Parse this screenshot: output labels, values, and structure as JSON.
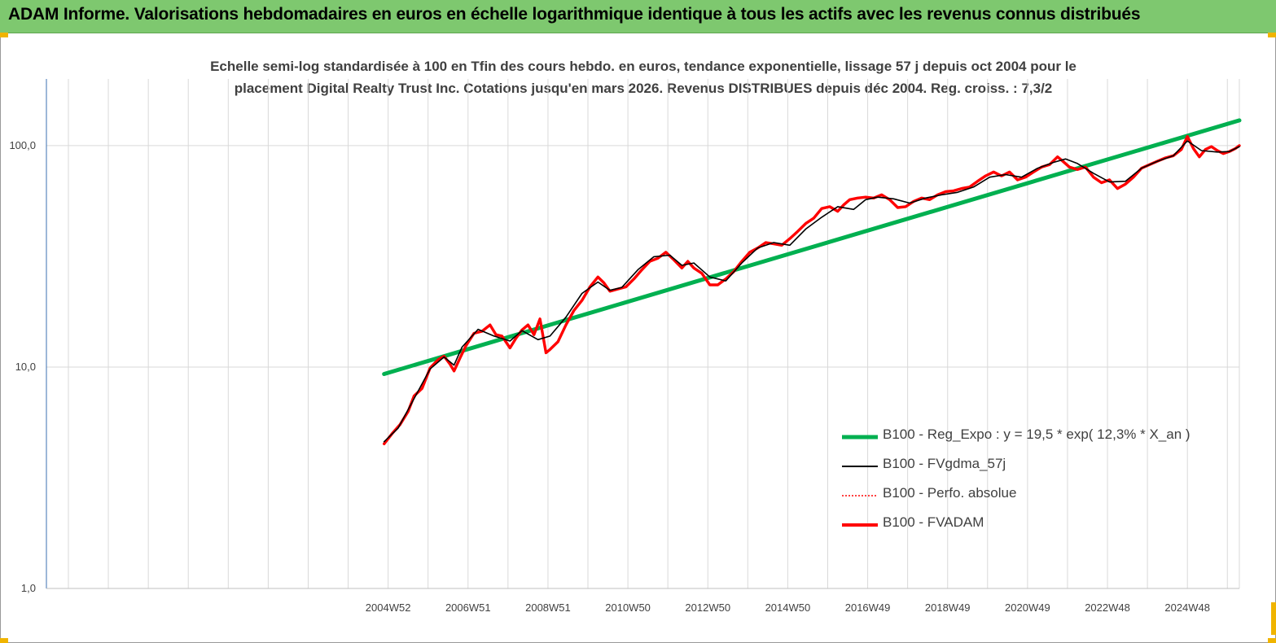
{
  "banner": {
    "title": "ADAM Informe. Valorisations hebdomadaires en euros en échelle logarithmique identique à tous les actifs avec les revenus connus distribués"
  },
  "chart_data": {
    "type": "line",
    "title_line1": "Echelle semi-log standardisée à 100 en Tfin des cours hebdo. en euros, tendance exponentielle, lissage 57 j depuis oct 2004 pour le",
    "title_line2": "placement Digital Realty Trust Inc. Cotations jusqu'en mars 2026. Revenus DISTRIBUES depuis déc 2004. Reg. croiss. : 7,3/2",
    "xlabel": "",
    "ylabel": "",
    "y_scale": "log",
    "ylim": [
      1,
      200
    ],
    "xlim": [
      1996.4,
      2026.25
    ],
    "yticks": [
      {
        "value": 1,
        "label": "1,0"
      },
      {
        "value": 10,
        "label": "10,0"
      },
      {
        "value": 100,
        "label": "100,0"
      }
    ],
    "xticks": [
      {
        "value": 2004.95,
        "label": "2004W52"
      },
      {
        "value": 2006.95,
        "label": "2006W51"
      },
      {
        "value": 2008.95,
        "label": "2008W51"
      },
      {
        "value": 2010.95,
        "label": "2010W50"
      },
      {
        "value": 2012.95,
        "label": "2012W50"
      },
      {
        "value": 2014.95,
        "label": "2014W50"
      },
      {
        "value": 2016.95,
        "label": "2016W49"
      },
      {
        "value": 2018.95,
        "label": "2018W49"
      },
      {
        "value": 2020.95,
        "label": "2020W49"
      },
      {
        "value": 2022.95,
        "label": "2022W48"
      },
      {
        "value": 2024.95,
        "label": "2024W48"
      }
    ],
    "vertical_grid": [
      1996.95,
      1997.95,
      1998.95,
      1999.95,
      2000.95,
      2001.95,
      2002.95,
      2003.95,
      2004.95,
      2005.95,
      2006.95,
      2007.95,
      2008.95,
      2009.95,
      2010.95,
      2011.95,
      2012.95,
      2013.95,
      2014.95,
      2015.95,
      2016.95,
      2017.95,
      2018.95,
      2019.95,
      2020.95,
      2021.95,
      2022.95,
      2023.95,
      2024.95,
      2025.95
    ],
    "grid": {
      "horizontal": true,
      "vertical": true
    },
    "legend_position": "bottom-right",
    "series": [
      {
        "name": "B100 - Reg_Expo : y = 19,5 * exp( 12,3% *  X_an )",
        "color": "#00b050",
        "style": "solid-thick",
        "x": [
          2004.85,
          2026.25
        ],
        "y": [
          9.3,
          130
        ]
      },
      {
        "name": "B100 - FVgdma_57j",
        "color": "#000000",
        "style": "solid-thin",
        "x": [
          2004.85,
          2005.2,
          2005.6,
          2006.0,
          2006.35,
          2006.6,
          2006.8,
          2007.2,
          2007.6,
          2008.0,
          2008.3,
          2008.7,
          2009.0,
          2009.4,
          2009.8,
          2010.2,
          2010.5,
          2010.8,
          2011.2,
          2011.6,
          2012.0,
          2012.3,
          2012.6,
          2013.0,
          2013.4,
          2013.8,
          2014.2,
          2014.6,
          2015.0,
          2015.4,
          2015.8,
          2016.2,
          2016.6,
          2016.9,
          2017.2,
          2017.6,
          2018.0,
          2018.4,
          2018.8,
          2019.2,
          2019.6,
          2020.0,
          2020.4,
          2020.8,
          2021.2,
          2021.6,
          2021.9,
          2022.2,
          2022.6,
          2023.0,
          2023.4,
          2023.8,
          2024.2,
          2024.6,
          2024.95,
          2025.3,
          2025.7,
          2026.0,
          2026.25
        ],
        "y": [
          4.6,
          5.3,
          7.2,
          9.8,
          11.1,
          10.2,
          12.3,
          14.8,
          13.8,
          13.1,
          14.6,
          13.3,
          13.8,
          16.8,
          21.5,
          24.2,
          22.2,
          22.9,
          27.5,
          31.5,
          32.0,
          28.8,
          29.5,
          25.5,
          24.5,
          29.5,
          34.5,
          36.5,
          35.5,
          42.0,
          47.5,
          53.0,
          51.5,
          57.0,
          58.5,
          57.5,
          55.0,
          58.0,
          60.0,
          61.5,
          65.0,
          72.0,
          74.0,
          72.0,
          79.0,
          84.0,
          87.0,
          83.0,
          75.0,
          68.5,
          69.0,
          79.0,
          85.0,
          90.0,
          105.0,
          95.0,
          93.5,
          94.0,
          99.0
        ]
      },
      {
        "name": "B100 - Perfo. absolue",
        "color": "#ff0000",
        "style": "dotted-thin",
        "x": [],
        "y": []
      },
      {
        "name": "B100 - FVADAM",
        "color": "#ff0000",
        "style": "solid-thick",
        "x": [
          2004.85,
          2005.05,
          2005.25,
          2005.45,
          2005.6,
          2005.8,
          2006.0,
          2006.2,
          2006.35,
          2006.5,
          2006.6,
          2006.75,
          2006.9,
          2007.1,
          2007.3,
          2007.5,
          2007.65,
          2007.8,
          2008.0,
          2008.15,
          2008.3,
          2008.45,
          2008.6,
          2008.75,
          2008.9,
          2009.0,
          2009.2,
          2009.4,
          2009.6,
          2009.8,
          2010.0,
          2010.2,
          2010.35,
          2010.5,
          2010.7,
          2010.9,
          2011.1,
          2011.3,
          2011.5,
          2011.7,
          2011.9,
          2012.1,
          2012.3,
          2012.45,
          2012.6,
          2012.8,
          2013.0,
          2013.2,
          2013.4,
          2013.6,
          2013.8,
          2014.0,
          2014.2,
          2014.4,
          2014.6,
          2014.8,
          2015.0,
          2015.2,
          2015.4,
          2015.6,
          2015.8,
          2016.0,
          2016.2,
          2016.35,
          2016.5,
          2016.7,
          2016.9,
          2017.1,
          2017.3,
          2017.5,
          2017.7,
          2017.9,
          2018.1,
          2018.3,
          2018.5,
          2018.7,
          2018.9,
          2019.1,
          2019.3,
          2019.5,
          2019.7,
          2019.9,
          2020.1,
          2020.3,
          2020.5,
          2020.7,
          2020.9,
          2021.1,
          2021.3,
          2021.5,
          2021.7,
          2021.8,
          2022.0,
          2022.2,
          2022.4,
          2022.6,
          2022.8,
          2023.0,
          2023.2,
          2023.4,
          2023.6,
          2023.8,
          2024.0,
          2024.2,
          2024.4,
          2024.6,
          2024.8,
          2024.95,
          2025.1,
          2025.25,
          2025.4,
          2025.55,
          2025.7,
          2025.85,
          2026.0,
          2026.15,
          2026.25
        ],
        "y": [
          4.5,
          5.0,
          5.5,
          6.3,
          7.4,
          8.0,
          9.9,
          10.8,
          11.2,
          10.3,
          9.6,
          11.0,
          12.5,
          14.2,
          14.5,
          15.5,
          14.0,
          13.8,
          12.2,
          13.5,
          14.7,
          15.5,
          14.0,
          16.5,
          11.6,
          12.0,
          13.0,
          15.5,
          18.0,
          20.0,
          23.0,
          25.5,
          24.0,
          22.0,
          22.5,
          23.0,
          25.0,
          27.5,
          30.0,
          31.0,
          33.0,
          30.5,
          28.0,
          30.0,
          28.0,
          26.5,
          23.5,
          23.5,
          25.0,
          27.0,
          30.0,
          33.0,
          34.5,
          36.5,
          36.0,
          35.5,
          38.0,
          41.0,
          44.5,
          47.0,
          52.0,
          53.0,
          50.5,
          54.0,
          57.0,
          58.0,
          58.5,
          58.0,
          60.0,
          57.0,
          52.5,
          53.0,
          56.0,
          58.0,
          57.0,
          60.0,
          62.0,
          62.5,
          64.0,
          65.0,
          69.0,
          73.0,
          76.0,
          73.0,
          76.0,
          70.0,
          72.0,
          76.0,
          80.0,
          82.0,
          89.0,
          86.0,
          80.0,
          78.0,
          80.0,
          72.0,
          68.0,
          70.0,
          64.0,
          67.0,
          72.0,
          79.0,
          82.0,
          85.0,
          88.0,
          90.0,
          96.0,
          110.0,
          97.0,
          89.0,
          96.0,
          99.0,
          95.0,
          92.0,
          94.0,
          97.0,
          100.0
        ]
      }
    ]
  }
}
